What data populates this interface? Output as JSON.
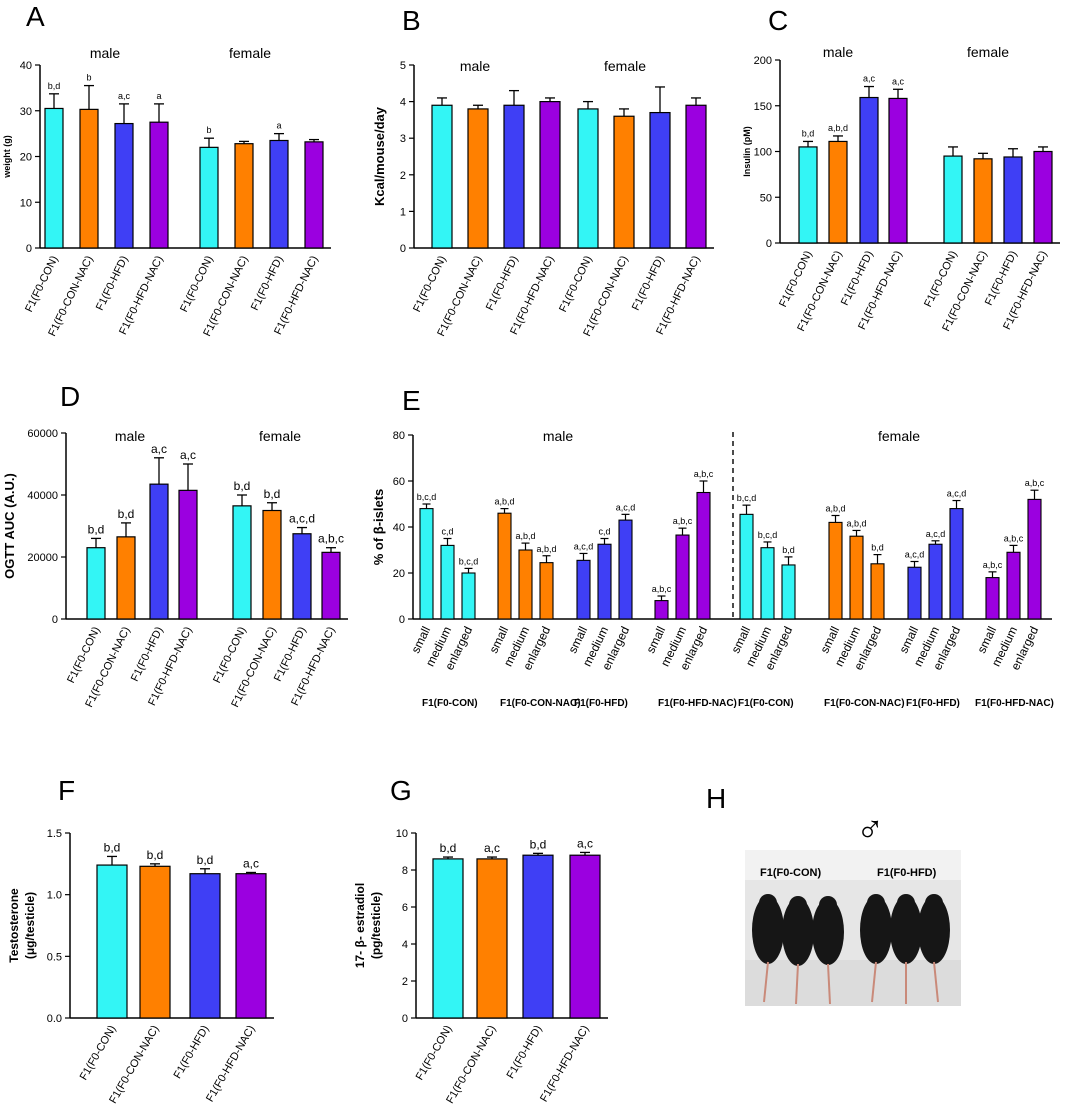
{
  "colors": {
    "F1(F0-CON)": "#33F5F5",
    "F1(F0-CON-NAC)": "#FF8000",
    "F1(F0-HFD)": "#3F3FF5",
    "F1(F0-HFD-NAC)": "#9B00E0"
  },
  "chart_data": [
    {
      "id": "A",
      "type": "bar",
      "panel_label": "A",
      "ylabel": "weight (g)",
      "ylim": [
        0,
        40
      ],
      "yticks": [
        "0",
        "10",
        "20",
        "30",
        "40"
      ],
      "sex_labels": [
        "male",
        "female"
      ],
      "categories": [
        "F1(F0-CON)",
        "F1(F0-CON-NAC)",
        "F1(F0-HFD)",
        "F1(F0-HFD-NAC)"
      ],
      "groups": [
        {
          "name": "male",
          "values": [
            30.5,
            30.3,
            27.2,
            27.5
          ],
          "errors": [
            3.2,
            5.2,
            4.3,
            4.0
          ],
          "sig": [
            "b,d",
            "b",
            "a,c",
            "a"
          ]
        },
        {
          "name": "female",
          "values": [
            22.0,
            22.8,
            23.5,
            23.2
          ],
          "errors": [
            2.0,
            0.5,
            1.5,
            0.5
          ],
          "sig": [
            "b",
            "",
            "a",
            ""
          ]
        }
      ]
    },
    {
      "id": "B",
      "type": "bar",
      "panel_label": "B",
      "ylabel": "Kcal/mouse/day",
      "ylim": [
        0,
        5
      ],
      "yticks": [
        "0",
        "1",
        "2",
        "3",
        "4",
        "5"
      ],
      "sex_labels": [
        "male",
        "female"
      ],
      "categories": [
        "F1(F0-CON)",
        "F1(F0-CON-NAC)",
        "F1(F0-HFD)",
        "F1(F0-HFD-NAC)"
      ],
      "groups": [
        {
          "name": "male",
          "values": [
            3.9,
            3.8,
            3.9,
            4.0
          ],
          "errors": [
            0.2,
            0.1,
            0.4,
            0.1
          ],
          "sig": [
            "",
            "",
            "",
            ""
          ]
        },
        {
          "name": "female",
          "values": [
            3.8,
            3.6,
            3.7,
            3.9
          ],
          "errors": [
            0.2,
            0.2,
            0.7,
            0.2
          ],
          "sig": [
            "",
            "",
            "",
            ""
          ]
        }
      ]
    },
    {
      "id": "C",
      "type": "bar",
      "panel_label": "C",
      "ylabel": "Insulin (pM)",
      "ylim": [
        0,
        200
      ],
      "yticks": [
        "0",
        "50",
        "100",
        "150",
        "200"
      ],
      "sex_labels": [
        "male",
        "female"
      ],
      "categories": [
        "F1(F0-CON)",
        "F1(F0-CON-NAC)",
        "F1(F0-HFD)",
        "F1(F0-HFD-NAC)"
      ],
      "groups": [
        {
          "name": "male",
          "values": [
            105,
            111,
            159,
            158
          ],
          "errors": [
            6,
            6,
            12,
            10
          ],
          "sig": [
            "b,d",
            "a,b,d",
            "a,c",
            "a,c"
          ]
        },
        {
          "name": "female",
          "values": [
            95,
            92,
            94,
            100
          ],
          "errors": [
            10,
            6,
            9,
            5
          ],
          "sig": [
            "",
            "",
            "",
            ""
          ]
        }
      ]
    },
    {
      "id": "D",
      "type": "bar",
      "panel_label": "D",
      "ylabel": "OGTT AUC (A.U.)",
      "ylim": [
        0,
        60000
      ],
      "yticks": [
        "0",
        "20000",
        "40000",
        "60000"
      ],
      "sex_labels": [
        "male",
        "female"
      ],
      "categories": [
        "F1(F0-CON)",
        "F1(F0-CON-NAC)",
        "F1(F0-HFD)",
        "F1(F0-HFD-NAC)"
      ],
      "groups": [
        {
          "name": "male",
          "values": [
            23000,
            26500,
            43500,
            41500
          ],
          "errors": [
            3000,
            4500,
            8500,
            8500
          ],
          "sig": [
            "b,d",
            "b,d",
            "a,c",
            "a,c"
          ]
        },
        {
          "name": "female",
          "values": [
            36500,
            35000,
            27500,
            21500
          ],
          "errors": [
            3500,
            2500,
            2000,
            1500
          ],
          "sig": [
            "b,d",
            "b,d",
            "a,c,d",
            "a,b,c"
          ]
        }
      ]
    },
    {
      "id": "E",
      "type": "bar",
      "panel_label": "E",
      "ylabel": "% of β-islets",
      "ylim": [
        0,
        80
      ],
      "yticks": [
        "0",
        "20",
        "40",
        "60",
        "80"
      ],
      "sex_labels": [
        "male",
        "female"
      ],
      "categories": [
        "small",
        "medium",
        "enlarged"
      ],
      "strain_groups": [
        "F1(F0-CON)",
        "F1(F0-CON-NAC)",
        "F1(F0-HFD)",
        "F1(F0-HFD-NAC)"
      ],
      "series": [
        {
          "sex": "male",
          "group": "F1(F0-CON)",
          "values": [
            48,
            32,
            20
          ],
          "errors": [
            2,
            3,
            2
          ],
          "sig": [
            "b,c,d",
            "c,d",
            "b,c,d"
          ]
        },
        {
          "sex": "male",
          "group": "F1(F0-CON-NAC)",
          "values": [
            46,
            30,
            24.5
          ],
          "errors": [
            2,
            3,
            3
          ],
          "sig": [
            "a,b,d",
            "a,b,d",
            "a,b,d"
          ]
        },
        {
          "sex": "male",
          "group": "F1(F0-HFD)",
          "values": [
            25.5,
            32.5,
            43
          ],
          "errors": [
            3,
            2.5,
            2.5
          ],
          "sig": [
            "a,c,d",
            "c,d",
            "a,c,d"
          ]
        },
        {
          "sex": "male",
          "group": "F1(F0-HFD-NAC)",
          "values": [
            8,
            36.5,
            55
          ],
          "errors": [
            2,
            3,
            5
          ],
          "sig": [
            "a,b,c",
            "a,b,c",
            "a,b,c"
          ]
        },
        {
          "sex": "female",
          "group": "F1(F0-CON)",
          "values": [
            45.5,
            31,
            23.5
          ],
          "errors": [
            4,
            2.5,
            3.5
          ],
          "sig": [
            "b,c,d",
            "b,c,d",
            "b,d"
          ]
        },
        {
          "sex": "female",
          "group": "F1(F0-CON-NAC)",
          "values": [
            42,
            36,
            24
          ],
          "errors": [
            3,
            2.5,
            4
          ],
          "sig": [
            "a,b,d",
            "a,b,d",
            "b,d"
          ]
        },
        {
          "sex": "female",
          "group": "F1(F0-HFD)",
          "values": [
            22.5,
            32.5,
            48
          ],
          "errors": [
            2.5,
            1.5,
            3.5
          ],
          "sig": [
            "a,c,d",
            "a,c,d",
            "a,c,d"
          ]
        },
        {
          "sex": "female",
          "group": "F1(F0-HFD-NAC)",
          "values": [
            18,
            29,
            52
          ],
          "errors": [
            2.5,
            3,
            4
          ],
          "sig": [
            "a,b,c",
            "a,b,c",
            "a,b,c"
          ]
        }
      ]
    },
    {
      "id": "F",
      "type": "bar",
      "panel_label": "F",
      "ylabel": [
        "Testosterone",
        "(μg/testicle)"
      ],
      "ylim": [
        0,
        1.5
      ],
      "yticks": [
        "0.0",
        "0.5",
        "1.0",
        "1.5"
      ],
      "categories": [
        "F1(F0-CON)",
        "F1(F0-CON-NAC)",
        "F1(F0-HFD)",
        "F1(F0-HFD-NAC)"
      ],
      "groups": [
        {
          "name": "male",
          "values": [
            1.24,
            1.23,
            1.17,
            1.17
          ],
          "errors": [
            0.07,
            0.02,
            0.04,
            0.01
          ],
          "sig": [
            "b,d",
            "b,d",
            "b,d",
            "a,c"
          ]
        }
      ]
    },
    {
      "id": "G",
      "type": "bar",
      "panel_label": "G",
      "ylabel": [
        "17- β- estradiol",
        "(pg/testicle)"
      ],
      "ylim": [
        0,
        10
      ],
      "yticks": [
        "0",
        "2",
        "4",
        "6",
        "8",
        "10"
      ],
      "categories": [
        "F1(F0-CON)",
        "F1(F0-CON-NAC)",
        "F1(F0-HFD)",
        "F1(F0-HFD-NAC)"
      ],
      "groups": [
        {
          "name": "male",
          "values": [
            8.6,
            8.6,
            8.8,
            8.8
          ],
          "errors": [
            0.1,
            0.1,
            0.1,
            0.15
          ],
          "sig": [
            "b,d",
            "a,c",
            "b,d",
            "a,c"
          ]
        }
      ]
    }
  ],
  "panel_h": {
    "panel_label": "H",
    "symbol": "♂",
    "photo_labels": [
      "F1(F0-CON)",
      "F1(F0-HFD)"
    ]
  }
}
